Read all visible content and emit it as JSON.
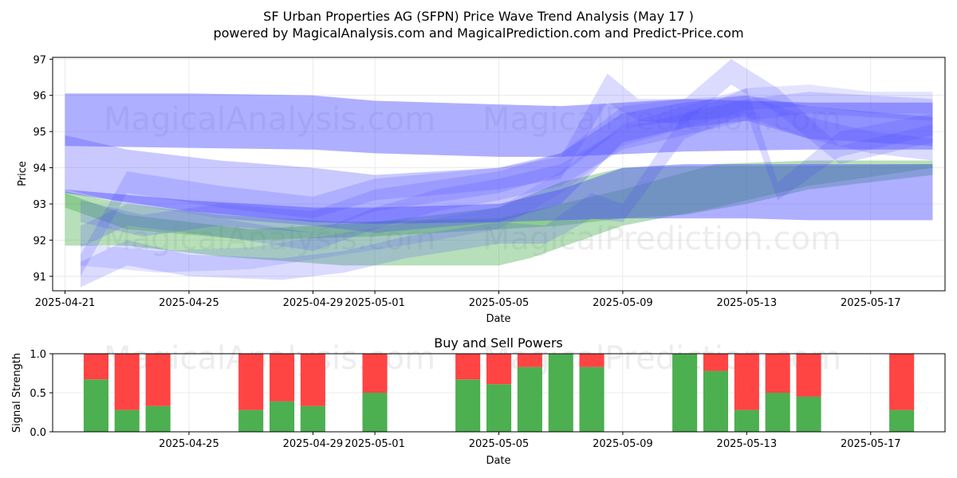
{
  "title": "SF Urban Properties AG (SFPN) Price Wave Trend Analysis (May 17 )",
  "subtitle": "powered by MagicalAnalysis.com and MagicalPrediction.com and Predict-Price.com",
  "watermarks": [
    "MagicalAnalysis.com",
    "MagicalPrediction.com",
    "MagicalAnalysis.com",
    "MagicalPrediction.com",
    "MagicalAnalysis.com",
    "MagicalPrediction.com"
  ],
  "colors": {
    "green": "#4caf50",
    "red": "#ff4444",
    "blue": "#4d4dff",
    "green_band": "#6abf69"
  },
  "chart_data": [
    {
      "type": "area",
      "title": "",
      "xlabel": "Date",
      "ylabel": "Price",
      "ylim": [
        90.6,
        97.05
      ],
      "xlim_days": [
        -0.4,
        28.4
      ],
      "x_start_date": "2025-04-21",
      "xticks": [
        {
          "day": 0,
          "label": "2025-04-21"
        },
        {
          "day": 4,
          "label": "2025-04-25"
        },
        {
          "day": 8,
          "label": "2025-04-29"
        },
        {
          "day": 10,
          "label": "2025-05-01"
        },
        {
          "day": 14,
          "label": "2025-05-05"
        },
        {
          "day": 18,
          "label": "2025-05-09"
        },
        {
          "day": 22,
          "label": "2025-05-13"
        },
        {
          "day": 26,
          "label": "2025-05-17"
        }
      ],
      "yticks": [
        91,
        92,
        93,
        94,
        95,
        96,
        97
      ],
      "series": [
        {
          "name": "green-band-1",
          "color": "green",
          "opacity": 0.4,
          "x": [
            0,
            2,
            5,
            9,
            14,
            15,
            18,
            21,
            24,
            28
          ],
          "upper": [
            93.35,
            93.0,
            92.7,
            92.5,
            92.6,
            92.8,
            93.4,
            94.1,
            94.2,
            94.2
          ],
          "lower": [
            91.85,
            91.85,
            91.55,
            91.3,
            91.3,
            91.5,
            92.4,
            92.9,
            93.5,
            94.0
          ]
        },
        {
          "name": "green-band-2",
          "color": "green",
          "opacity": 0.4,
          "x": [
            0,
            2,
            6,
            10,
            14,
            16,
            18,
            20,
            22,
            24,
            28
          ],
          "upper": [
            93.3,
            92.7,
            92.3,
            92.5,
            92.9,
            93.6,
            94.0,
            94.05,
            94.05,
            94.05,
            94.1
          ],
          "lower": [
            92.9,
            92.3,
            92.0,
            92.1,
            92.3,
            92.4,
            92.6,
            92.7,
            93.0,
            93.4,
            93.8
          ]
        },
        {
          "name": "blue-band-wide",
          "color": "blue",
          "opacity": 0.45,
          "x": [
            0,
            4,
            8,
            10,
            14,
            16,
            20,
            24,
            28
          ],
          "upper": [
            96.05,
            96.05,
            96.0,
            95.85,
            95.75,
            95.7,
            95.9,
            95.8,
            95.8
          ],
          "lower": [
            94.6,
            94.55,
            94.5,
            94.4,
            94.3,
            94.3,
            94.45,
            94.5,
            94.5
          ]
        },
        {
          "name": "blue-band-low",
          "color": "blue",
          "opacity": 0.45,
          "x": [
            0,
            4,
            8,
            10,
            14,
            16,
            18,
            20,
            22,
            24,
            28
          ],
          "upper": [
            93.4,
            93.1,
            92.9,
            92.9,
            93.0,
            93.4,
            94.0,
            94.1,
            94.1,
            94.1,
            94.1
          ],
          "lower": [
            93.3,
            92.8,
            92.5,
            92.45,
            92.5,
            92.55,
            92.6,
            92.6,
            92.6,
            92.55,
            92.55
          ]
        },
        {
          "name": "blue-band-mid",
          "color": "blue",
          "opacity": 0.3,
          "x": [
            0,
            2,
            5,
            8,
            10,
            14,
            16,
            18,
            20,
            22,
            24,
            28
          ],
          "upper": [
            94.9,
            94.5,
            94.2,
            94.0,
            93.8,
            94.0,
            94.4,
            95.5,
            95.8,
            96.0,
            95.7,
            95.4
          ],
          "lower": [
            93.4,
            93.0,
            92.6,
            92.4,
            92.2,
            92.5,
            93.0,
            94.7,
            95.1,
            95.3,
            94.8,
            94.6
          ]
        },
        {
          "name": "blue-band-a",
          "color": "blue",
          "opacity": 0.2,
          "x": [
            0.5,
            2,
            5,
            8,
            10,
            14,
            16,
            17.5,
            18.5,
            20,
            21.5,
            23,
            25,
            28
          ],
          "upper": [
            91.6,
            93.9,
            93.5,
            93.2,
            93.7,
            94.0,
            94.3,
            96.6,
            95.9,
            95.9,
            97.0,
            96.2,
            94.6,
            95.2
          ],
          "lower": [
            91.0,
            93.3,
            92.9,
            92.6,
            93.1,
            93.4,
            93.7,
            95.8,
            95.3,
            95.2,
            96.3,
            95.5,
            94.1,
            94.7
          ]
        },
        {
          "name": "blue-band-b",
          "color": "blue",
          "opacity": 0.2,
          "x": [
            0.5,
            2,
            4,
            7,
            9,
            11,
            14,
            15.5,
            17,
            18,
            20,
            22,
            23,
            25,
            28
          ],
          "upper": [
            91.4,
            92.0,
            91.6,
            91.5,
            91.7,
            92.1,
            92.5,
            92.4,
            93.3,
            93.0,
            95.5,
            96.2,
            93.6,
            95.0,
            95.5
          ],
          "lower": [
            90.7,
            91.3,
            91.0,
            90.9,
            91.1,
            91.5,
            91.9,
            91.9,
            92.6,
            92.5,
            94.8,
            95.5,
            93.1,
            94.3,
            94.9
          ]
        },
        {
          "name": "blue-band-c",
          "color": "blue",
          "opacity": 0.2,
          "x": [
            0.5,
            2,
            5,
            8,
            10,
            12,
            14,
            16,
            18,
            20,
            22,
            24,
            26,
            28
          ],
          "upper": [
            92.4,
            93.0,
            92.6,
            92.2,
            92.9,
            93.4,
            93.7,
            94.1,
            95.1,
            95.5,
            95.9,
            96.1,
            96.0,
            95.9
          ],
          "lower": [
            91.8,
            92.4,
            92.1,
            91.7,
            92.3,
            92.8,
            93.1,
            93.5,
            94.5,
            94.9,
            95.3,
            95.5,
            95.4,
            95.3
          ]
        },
        {
          "name": "blue-band-d",
          "color": "blue",
          "opacity": 0.2,
          "x": [
            0.5,
            2.5,
            5,
            8,
            10,
            14,
            16,
            18,
            20,
            22,
            24,
            26,
            28
          ],
          "upper": [
            93.1,
            92.7,
            93.0,
            92.8,
            93.4,
            93.9,
            94.4,
            95.7,
            95.9,
            96.0,
            95.4,
            95.0,
            94.8
          ],
          "lower": [
            92.5,
            92.1,
            92.4,
            92.2,
            92.8,
            93.3,
            93.8,
            95.1,
            95.3,
            95.4,
            94.8,
            94.4,
            94.2
          ]
        },
        {
          "name": "blue-band-e",
          "color": "blue",
          "opacity": 0.15,
          "x": [
            0.5,
            3,
            6,
            9,
            12,
            14,
            16,
            18,
            20,
            22,
            24,
            26,
            28
          ],
          "upper": [
            91.9,
            91.7,
            91.8,
            92.2,
            92.6,
            92.9,
            93.9,
            95.2,
            95.7,
            96.2,
            96.3,
            96.1,
            96.1
          ],
          "lower": [
            91.3,
            91.1,
            91.2,
            91.6,
            92.0,
            92.3,
            93.3,
            94.6,
            95.1,
            95.6,
            95.7,
            95.5,
            95.5
          ]
        }
      ]
    },
    {
      "type": "bar",
      "title": "Buy and Sell Powers",
      "xlabel": "Date",
      "ylabel": "Signal Strength",
      "ylim": [
        0,
        1.0
      ],
      "xlim_days": [
        -0.4,
        28.4
      ],
      "yticks": [
        {
          "v": 0,
          "label": "0.0"
        },
        {
          "v": 0.5,
          "label": "0.5"
        },
        {
          "v": 1.0,
          "label": "1.0"
        }
      ],
      "xticks": [
        {
          "day": 4,
          "label": "2025-04-25"
        },
        {
          "day": 8,
          "label": "2025-04-29"
        },
        {
          "day": 10,
          "label": "2025-05-01"
        },
        {
          "day": 14,
          "label": "2025-05-05"
        },
        {
          "day": 18,
          "label": "2025-05-09"
        },
        {
          "day": 22,
          "label": "2025-05-13"
        },
        {
          "day": 26,
          "label": "2025-05-17"
        }
      ],
      "series": [
        {
          "name": "Buy",
          "color": "green"
        },
        {
          "name": "Sell",
          "color": "red"
        }
      ],
      "bars": [
        {
          "day": 1,
          "buy": 0.67,
          "sell": 0.33
        },
        {
          "day": 2,
          "buy": 0.28,
          "sell": 0.72
        },
        {
          "day": 3,
          "buy": 0.33,
          "sell": 0.67
        },
        {
          "day": 6,
          "buy": 0.28,
          "sell": 0.72
        },
        {
          "day": 7,
          "buy": 0.39,
          "sell": 0.61
        },
        {
          "day": 8,
          "buy": 0.33,
          "sell": 0.67
        },
        {
          "day": 10,
          "buy": 0.5,
          "sell": 0.5
        },
        {
          "day": 13,
          "buy": 0.67,
          "sell": 0.33
        },
        {
          "day": 14,
          "buy": 0.61,
          "sell": 0.39
        },
        {
          "day": 15,
          "buy": 0.83,
          "sell": 0.17
        },
        {
          "day": 16,
          "buy": 1.0,
          "sell": 0.0
        },
        {
          "day": 17,
          "buy": 0.83,
          "sell": 0.17
        },
        {
          "day": 20,
          "buy": 1.0,
          "sell": 0.0
        },
        {
          "day": 21,
          "buy": 0.78,
          "sell": 0.22
        },
        {
          "day": 22,
          "buy": 0.28,
          "sell": 0.72
        },
        {
          "day": 23,
          "buy": 0.5,
          "sell": 0.5
        },
        {
          "day": 24,
          "buy": 0.45,
          "sell": 0.55
        },
        {
          "day": 27,
          "buy": 0.28,
          "sell": 0.72
        }
      ]
    }
  ]
}
